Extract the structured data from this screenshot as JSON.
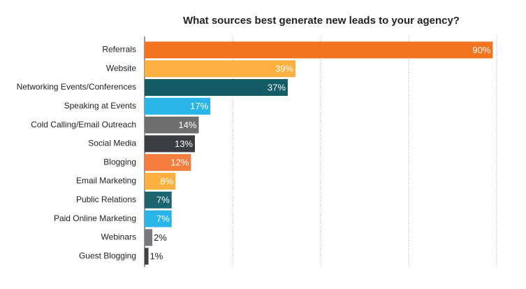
{
  "chart_data": {
    "type": "hbar",
    "title": "What sources best generate new leads to your agency?",
    "categories": [
      "Referrals",
      "Website",
      "Networking Events/Conferences",
      "Speaking at Events",
      "Cold Calling/Email Outreach",
      "Social Media",
      "Blogging",
      "Email Marketing",
      "Public Relations",
      "Paid Online Marketing",
      "Webinars",
      "Guest Blogging"
    ],
    "values": [
      90,
      39,
      37,
      17,
      14,
      13,
      12,
      8,
      7,
      7,
      2,
      1
    ],
    "value_labels": [
      "90%",
      "39%",
      "37%",
      "17%",
      "14%",
      "13%",
      "12%",
      "8%",
      "7%",
      "7%",
      "2%",
      "1%"
    ],
    "colors": [
      "#f47321",
      "#fbb040",
      "#135b66",
      "#29b5e8",
      "#6d6e70",
      "#3a3d40",
      "#f47c3c",
      "#fbb040",
      "#1b6470",
      "#29b5e8",
      "#77787b",
      "#3f4245"
    ],
    "xlim": [
      0,
      91
    ],
    "grid": true
  }
}
